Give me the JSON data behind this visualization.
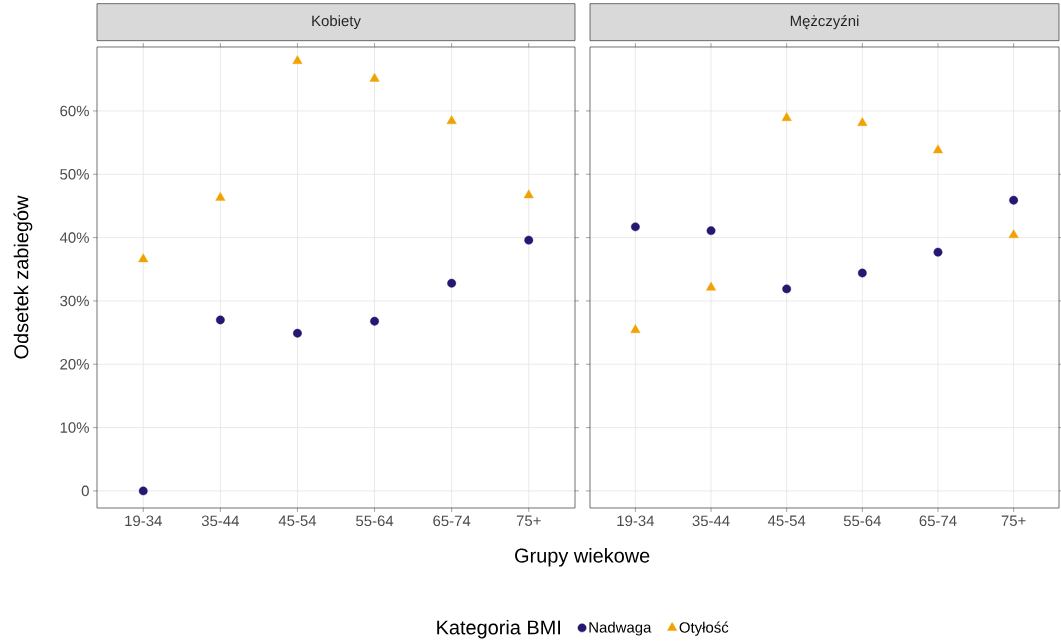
{
  "chart_data": [
    {
      "type": "scatter",
      "title": "Kobiety",
      "xlabel": "Grupy wiekowe",
      "ylabel": "Odsetek zabiegów",
      "legend_title": "Kategoria BMI",
      "legend": "bottom",
      "grid": true,
      "categories": [
        "19-34",
        "35-44",
        "45-54",
        "55-64",
        "65-74",
        "75+"
      ],
      "ylim": [
        -2.7,
        70.1
      ],
      "yticks": [
        0,
        {
          "value": 10,
          "label": "10%"
        },
        {
          "value": 20,
          "label": "20%"
        },
        {
          "value": 30,
          "label": "30%"
        },
        {
          "value": 40,
          "label": "40%"
        },
        {
          "value": 50,
          "label": "50%"
        },
        {
          "value": 60,
          "label": "60%"
        }
      ],
      "series": [
        {
          "name": "Nadwaga",
          "color": "#281670",
          "marker": "circle",
          "values": [
            0,
            27.0,
            24.9,
            26.8,
            32.8,
            39.6
          ]
        },
        {
          "name": "Otyłość",
          "color": "#f2a200",
          "marker": "triangle",
          "values": [
            36.6,
            46.3,
            67.9,
            65.1,
            58.4,
            46.7
          ]
        }
      ]
    },
    {
      "type": "scatter",
      "title": "Mężczyźni",
      "grid": true,
      "tick_labels": "x",
      "categories": [
        "19-34",
        "35-44",
        "45-54",
        "55-64",
        "65-74",
        "75+"
      ],
      "ylim": [
        -2.7,
        70.1
      ],
      "yticks": [
        {
          "value": 0,
          "label": null
        },
        {
          "value": 10,
          "label": null
        },
        {
          "value": 20,
          "label": null
        },
        {
          "value": 30,
          "label": null
        },
        {
          "value": 40,
          "label": null
        },
        {
          "value": 50,
          "label": null
        },
        {
          "value": 60,
          "label": null
        }
      ],
      "series": [
        {
          "color": "#281670",
          "marker": "circle",
          "values": [
            41.7,
            41.1,
            31.9,
            34.4,
            37.7,
            45.9
          ]
        },
        {
          "color": "#f2a200",
          "marker": "triangle",
          "values": [
            25.4,
            32.1,
            58.9,
            58.1,
            53.8,
            40.4
          ]
        }
      ]
    }
  ]
}
